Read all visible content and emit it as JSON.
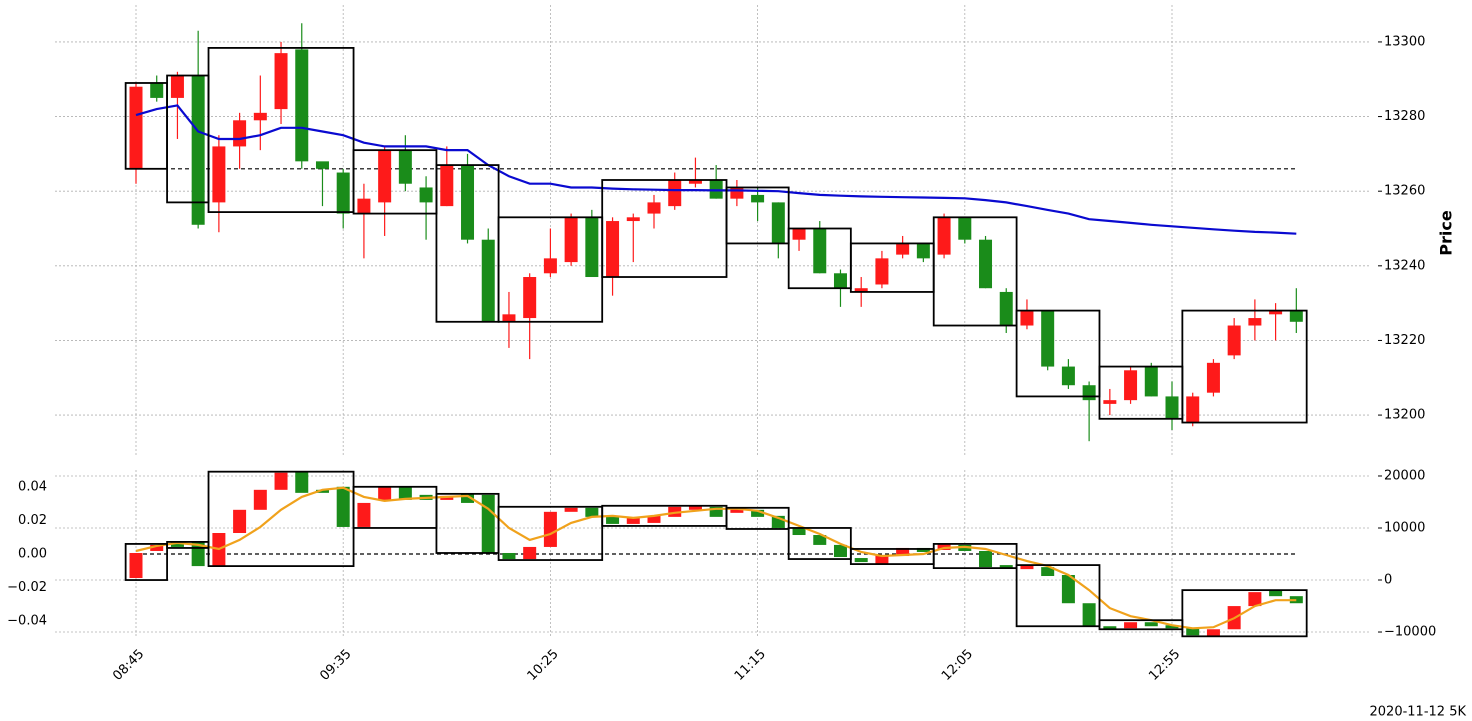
{
  "chart_data": [
    {
      "type": "candlestick",
      "ylabel": "Price",
      "ylim": [
        13189.3,
        13309.9
      ],
      "yticks": [
        13200,
        13220,
        13240,
        13260,
        13280,
        13300
      ],
      "grid": true,
      "up_color": "#fe1a1a",
      "down_color": "#1a8c1a",
      "open": [
        13266,
        13289,
        13285,
        13291,
        13257,
        13272,
        13279,
        13282,
        13298,
        13268,
        13265,
        13254,
        13257,
        13271,
        13261,
        13256,
        13267,
        13247,
        13225,
        13226,
        13238,
        13241,
        13253,
        13237,
        13252,
        13254,
        13256,
        13262,
        13263,
        13258,
        13259,
        13257,
        13247,
        13250,
        13238,
        13233,
        13235,
        13243,
        13246,
        13243,
        13253,
        13247,
        13233,
        13224,
        13228,
        13213,
        13208,
        13203,
        13204,
        13213,
        13205,
        13198,
        13206,
        13216,
        13224,
        13227,
        13228
      ],
      "high": [
        13289,
        13291,
        13292,
        13303,
        13275,
        13281,
        13291,
        13300,
        13305,
        13267,
        13266,
        13262,
        13272,
        13275,
        13264,
        13272,
        13270,
        13250,
        13233,
        13238,
        13250,
        13254,
        13255,
        13253,
        13254,
        13259,
        13265,
        13269,
        13267,
        13263,
        13261,
        13257,
        13250,
        13252,
        13239,
        13237,
        13244,
        13248,
        13246,
        13254,
        13253,
        13248,
        13234,
        13231,
        13228,
        13215,
        13209,
        13207,
        13213,
        13214,
        13209,
        13206,
        13215,
        13226,
        13231,
        13230,
        13234
      ],
      "low": [
        13262,
        13284,
        13274,
        13250,
        13249,
        13266,
        13271,
        13278,
        13266,
        13256,
        13250,
        13242,
        13248,
        13260,
        13247,
        13256,
        13246,
        13225,
        13218,
        13215,
        13237,
        13240,
        13237,
        13232,
        13241,
        13250,
        13255,
        13261,
        13258,
        13256,
        13252,
        13242,
        13244,
        13238,
        13229,
        13229,
        13234,
        13242,
        13241,
        13242,
        13246,
        13234,
        13222,
        13223,
        13212,
        13207,
        13193,
        13200,
        13203,
        13205,
        13196,
        13197,
        13205,
        13215,
        13220,
        13220,
        13222
      ],
      "close": [
        13288,
        13285,
        13291,
        13251,
        13272,
        13279,
        13281,
        13297,
        13268,
        13266,
        13254,
        13258,
        13271,
        13262,
        13257,
        13267,
        13247,
        13225,
        13227,
        13237,
        13242,
        13253,
        13237,
        13252,
        13253,
        13257,
        13263,
        13263,
        13258,
        13261,
        13257,
        13246,
        13250,
        13238,
        13234,
        13234,
        13242,
        13246,
        13242,
        13253,
        13247,
        13234,
        13224,
        13228,
        13213,
        13208,
        13204,
        13204,
        13212,
        13205,
        13199,
        13205,
        13214,
        13224,
        13226,
        13228,
        13225
      ],
      "lines": [
        {
          "color": "#0a0ad0",
          "values": [
            13280.4,
            13282,
            13283,
            13276,
            13274,
            13274,
            13275,
            13277,
            13277,
            13276,
            13275,
            13273,
            13272,
            13272,
            13272,
            13271,
            13271,
            13267,
            13264,
            13262,
            13262,
            13261,
            13261,
            13260.7,
            13260.5,
            13260.4,
            13260.3,
            13260.3,
            13260.2,
            13260.2,
            13260.1,
            13260,
            13259.5,
            13259,
            13258.8,
            13258.6,
            13258.5,
            13258.4,
            13258.3,
            13258.2,
            13258.1,
            13257.6,
            13257,
            13256,
            13255,
            13254,
            13252.5,
            13252,
            13251.5,
            13251,
            13250.6,
            13250.2,
            13249.8,
            13249.4,
            13249.1,
            13248.9,
            13248.6
          ]
        }
      ],
      "hline": 13266,
      "boxes": [
        {
          "x": [
            0,
            1
          ],
          "y": [
            13266,
            13289
          ]
        },
        {
          "x": [
            2,
            3
          ],
          "y": [
            13257,
            13291
          ]
        },
        {
          "x": [
            4,
            10
          ],
          "y": [
            13254.4,
            13298.4
          ]
        },
        {
          "x": [
            11,
            14
          ],
          "y": [
            13254,
            13271
          ]
        },
        {
          "x": [
            15,
            17
          ],
          "y": [
            13225,
            13267
          ]
        },
        {
          "x": [
            18,
            22
          ],
          "y": [
            13225,
            13253
          ]
        },
        {
          "x": [
            23,
            28
          ],
          "y": [
            13237,
            13263
          ]
        },
        {
          "x": [
            29,
            31
          ],
          "y": [
            13246,
            13261
          ]
        },
        {
          "x": [
            32,
            34
          ],
          "y": [
            13234,
            13250
          ]
        },
        {
          "x": [
            35,
            38
          ],
          "y": [
            13233,
            13246
          ]
        },
        {
          "x": [
            39,
            42
          ],
          "y": [
            13224,
            13253
          ]
        },
        {
          "x": [
            43,
            46
          ],
          "y": [
            13205,
            13228
          ]
        },
        {
          "x": [
            47,
            50
          ],
          "y": [
            13199,
            13213
          ]
        },
        {
          "x": [
            51,
            56
          ],
          "y": [
            13198,
            13228
          ]
        }
      ]
    },
    {
      "type": "candlestick",
      "categories": [
        "08:45",
        null,
        null,
        null,
        null,
        null,
        null,
        null,
        null,
        null,
        "09:35",
        null,
        null,
        null,
        null,
        null,
        null,
        null,
        null,
        null,
        "10:25",
        null,
        null,
        null,
        null,
        null,
        null,
        null,
        null,
        null,
        "11:15",
        null,
        null,
        null,
        null,
        null,
        null,
        null,
        null,
        null,
        "12:05",
        null,
        null,
        null,
        null,
        null,
        null,
        null,
        null,
        null,
        "12:55",
        null,
        null,
        null,
        null,
        null,
        null
      ],
      "ylim": [
        -0.05,
        0.05
      ],
      "yticks": [
        {
          "value": -0.04,
          "label": "−0.04"
        },
        {
          "value": -0.02,
          "label": "−0.02"
        },
        {
          "value": 0,
          "label": "0.00"
        },
        {
          "value": 0.02,
          "label": "0.02"
        },
        {
          "value": 0.04,
          "label": "0.04"
        }
      ],
      "y2lim": [
        -11150,
        21150
      ],
      "y2ticks": [
        {
          "value": -10000,
          "label": "−10000"
        },
        0,
        10000,
        20000
      ],
      "grid": true,
      "up_color": "#fe1a1a",
      "down_color": "#1a8c1a",
      "open": [
        -0.0143,
        0.0018,
        0.0072,
        0.0072,
        -0.0072,
        0.0125,
        0.0263,
        0.0382,
        0.049,
        0.0382,
        0.04,
        0.0161,
        0.0322,
        0.04,
        0.0352,
        0.0322,
        0.0358,
        0.0352,
        0.0006,
        -0.003,
        0.0042,
        0.0251,
        0.0275,
        0.0227,
        0.0179,
        0.0185,
        0.0221,
        0.0263,
        0.0281,
        0.0245,
        0.0263,
        0.0227,
        0.0155,
        0.0113,
        0.0054,
        -0.0024,
        -0.006,
        -0.0012,
        0.0036,
        0.0024,
        0.0054,
        0.0018,
        -0.0066,
        -0.009,
        -0.0078,
        -0.0125,
        -0.0293,
        -0.043,
        -0.0442,
        -0.0406,
        -0.0424,
        -0.0442,
        -0.049,
        -0.0448,
        -0.031,
        -0.0215,
        -0.0251
      ],
      "close": [
        0.0006,
        0.0054,
        0.0042,
        -0.0072,
        0.0125,
        0.0263,
        0.0382,
        0.0484,
        0.0364,
        0.0364,
        0.0161,
        0.0304,
        0.04,
        0.0322,
        0.0322,
        0.0346,
        0.0304,
        0.0006,
        -0.003,
        0.0042,
        0.0251,
        0.0275,
        0.0221,
        0.0179,
        0.0215,
        0.0227,
        0.0281,
        0.0287,
        0.0221,
        0.0269,
        0.0221,
        0.0155,
        0.0113,
        0.0054,
        -0.0018,
        -0.0048,
        -0.0006,
        0.0036,
        0.0012,
        0.006,
        0.0018,
        -0.0078,
        -0.0084,
        -0.0066,
        -0.0131,
        -0.0293,
        -0.043,
        -0.0448,
        -0.0406,
        -0.043,
        -0.0442,
        -0.0484,
        -0.0448,
        -0.031,
        -0.0227,
        -0.0251,
        -0.0293
      ],
      "lines": [
        {
          "color": "#f0a21c",
          "values": [
            0.0018,
            0.0048,
            0.0066,
            0.0054,
            0.003,
            0.0084,
            0.0161,
            0.0263,
            0.034,
            0.0382,
            0.0394,
            0.034,
            0.0316,
            0.0328,
            0.0334,
            0.034,
            0.0346,
            0.0269,
            0.0155,
            0.0084,
            0.0119,
            0.0185,
            0.0221,
            0.0227,
            0.0215,
            0.0227,
            0.0245,
            0.0257,
            0.0269,
            0.0269,
            0.0257,
            0.0215,
            0.0167,
            0.0119,
            0.006,
            0.0012,
            -0.0012,
            -0.0006,
            0,
            0.0036,
            0.0042,
            0.003,
            -0.0006,
            -0.0042,
            -0.0072,
            -0.0125,
            -0.0215,
            -0.0322,
            -0.037,
            -0.0394,
            -0.0424,
            -0.0442,
            -0.0436,
            -0.0382,
            -0.031,
            -0.0275,
            -0.0275
          ]
        }
      ],
      "hline": 0,
      "boxes": [
        {
          "x": [
            0,
            1
          ],
          "y": [
            -0.0155,
            0.006
          ]
        },
        {
          "x": [
            2,
            3
          ],
          "y": [
            0.0036,
            0.0072
          ]
        },
        {
          "x": [
            4,
            10
          ],
          "y": [
            -0.0072,
            0.049
          ]
        },
        {
          "x": [
            11,
            14
          ],
          "y": [
            0.0155,
            0.04
          ]
        },
        {
          "x": [
            15,
            17
          ],
          "y": [
            0.0006,
            0.0358
          ]
        },
        {
          "x": [
            18,
            22
          ],
          "y": [
            -0.0036,
            0.0281
          ]
        },
        {
          "x": [
            23,
            28
          ],
          "y": [
            0.0167,
            0.0287
          ]
        },
        {
          "x": [
            29,
            31
          ],
          "y": [
            0.0149,
            0.0275
          ]
        },
        {
          "x": [
            32,
            34
          ],
          "y": [
            -0.003,
            0.0155
          ]
        },
        {
          "x": [
            35,
            38
          ],
          "y": [
            -0.006,
            0.003
          ]
        },
        {
          "x": [
            39,
            42
          ],
          "y": [
            -0.0084,
            0.006
          ]
        },
        {
          "x": [
            43,
            46
          ],
          "y": [
            -0.043,
            -0.0066
          ]
        },
        {
          "x": [
            47,
            50
          ],
          "y": [
            -0.0448,
            -0.0394
          ]
        },
        {
          "x": [
            51,
            56
          ],
          "y": [
            -0.049,
            -0.0215
          ]
        }
      ]
    }
  ],
  "footnote": "2020-11-12 5K"
}
